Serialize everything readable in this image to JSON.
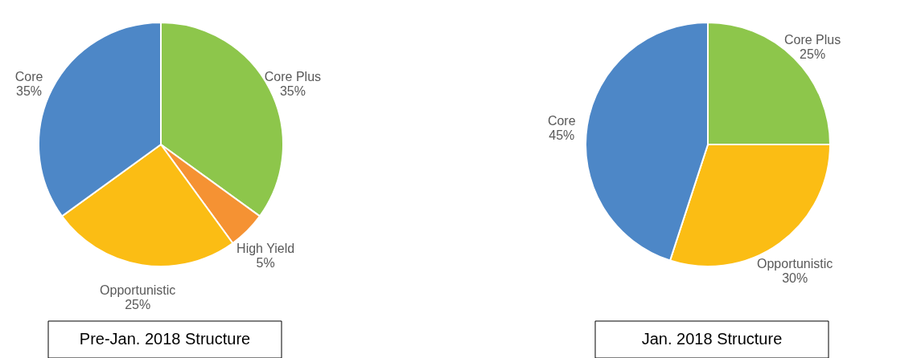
{
  "chart_data": [
    {
      "type": "pie",
      "title": "Pre-Jan. 2018 Structure",
      "categories": [
        "Core Plus",
        "High Yield",
        "Opportunistic",
        "Core"
      ],
      "values": [
        35,
        5,
        25,
        35
      ],
      "value_labels": [
        "35%",
        "5%",
        "25%",
        "35%"
      ],
      "colors": [
        "#8dc64b",
        "#f59233",
        "#fbbd14",
        "#4d87c7"
      ]
    },
    {
      "type": "pie",
      "title": "Jan. 2018 Structure",
      "categories": [
        "Core Plus",
        "Opportunistic",
        "Core"
      ],
      "values": [
        25,
        30,
        45
      ],
      "value_labels": [
        "25%",
        "30%",
        "45%"
      ],
      "colors": [
        "#8dc64b",
        "#fbbd14",
        "#4d87c7"
      ]
    }
  ]
}
